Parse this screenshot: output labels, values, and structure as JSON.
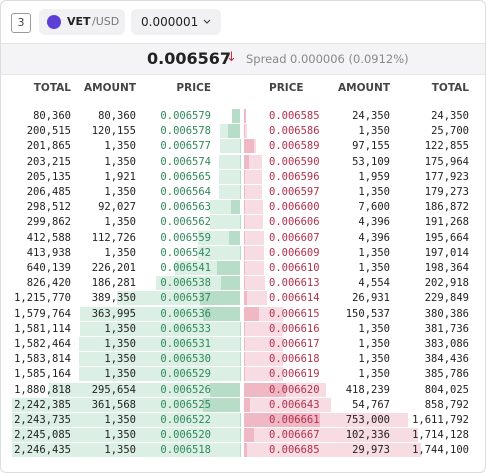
{
  "header": {
    "badge": "3",
    "pair_base": "VET",
    "pair_quote": "/USD",
    "tick_size": "0.000001"
  },
  "summary": {
    "last_price": "0.006567",
    "direction": "↓",
    "spread_label": "Spread",
    "spread_value": "0.000006 (0.0912%)"
  },
  "columns": {
    "bids": [
      "TOTAL",
      "AMOUNT",
      "PRICE"
    ],
    "asks": [
      "PRICE",
      "AMOUNT",
      "TOTAL"
    ]
  },
  "bids": [
    [
      "80,360",
      "80,360",
      "0.006579"
    ],
    [
      "200,515",
      "120,155",
      "0.006578"
    ],
    [
      "201,865",
      "1,350",
      "0.006577"
    ],
    [
      "203,215",
      "1,350",
      "0.006574"
    ],
    [
      "205,135",
      "1,921",
      "0.006565"
    ],
    [
      "206,485",
      "1,350",
      "0.006564"
    ],
    [
      "298,512",
      "92,027",
      "0.006563"
    ],
    [
      "299,862",
      "1,350",
      "0.006562"
    ],
    [
      "412,588",
      "112,726",
      "0.006559"
    ],
    [
      "413,938",
      "1,350",
      "0.006542"
    ],
    [
      "640,139",
      "226,201",
      "0.006541"
    ],
    [
      "826,420",
      "186,281",
      "0.006538"
    ],
    [
      "1,215,770",
      "389,350",
      "0.006537"
    ],
    [
      "1,579,764",
      "363,995",
      "0.006536"
    ],
    [
      "1,581,114",
      "1,350",
      "0.006533"
    ],
    [
      "1,582,464",
      "1,350",
      "0.006531"
    ],
    [
      "1,583,814",
      "1,350",
      "0.006530"
    ],
    [
      "1,585,164",
      "1,350",
      "0.006529"
    ],
    [
      "1,880,818",
      "295,654",
      "0.006526"
    ],
    [
      "2,242,385",
      "361,568",
      "0.006525"
    ],
    [
      "2,243,735",
      "1,350",
      "0.006522"
    ],
    [
      "2,245,085",
      "1,350",
      "0.006520"
    ],
    [
      "2,246,435",
      "1,350",
      "0.006518"
    ]
  ],
  "asks": [
    [
      "0.006585",
      "24,350",
      "24,350"
    ],
    [
      "0.006586",
      "1,350",
      "25,700"
    ],
    [
      "0.006589",
      "97,155",
      "122,855"
    ],
    [
      "0.006590",
      "53,109",
      "175,964"
    ],
    [
      "0.006596",
      "1,959",
      "177,923"
    ],
    [
      "0.006597",
      "1,350",
      "179,273"
    ],
    [
      "0.006600",
      "7,600",
      "186,872"
    ],
    [
      "0.006606",
      "4,396",
      "191,268"
    ],
    [
      "0.006607",
      "4,396",
      "195,664"
    ],
    [
      "0.006609",
      "1,350",
      "197,014"
    ],
    [
      "0.006610",
      "1,350",
      "198,364"
    ],
    [
      "0.006613",
      "4,554",
      "202,918"
    ],
    [
      "0.006614",
      "26,931",
      "229,849"
    ],
    [
      "0.006615",
      "150,537",
      "380,386"
    ],
    [
      "0.006616",
      "1,350",
      "381,736"
    ],
    [
      "0.006617",
      "1,350",
      "383,086"
    ],
    [
      "0.006618",
      "1,350",
      "384,436"
    ],
    [
      "0.006619",
      "1,350",
      "385,786"
    ],
    [
      "0.006620",
      "418,239",
      "804,025"
    ],
    [
      "0.006643",
      "54,767",
      "858,792"
    ],
    [
      "0.006661",
      "753,000",
      "1,611,792"
    ],
    [
      "0.006667",
      "102,336",
      "1,714,128"
    ],
    [
      "0.006685",
      "29,973",
      "1,744,100"
    ]
  ]
}
